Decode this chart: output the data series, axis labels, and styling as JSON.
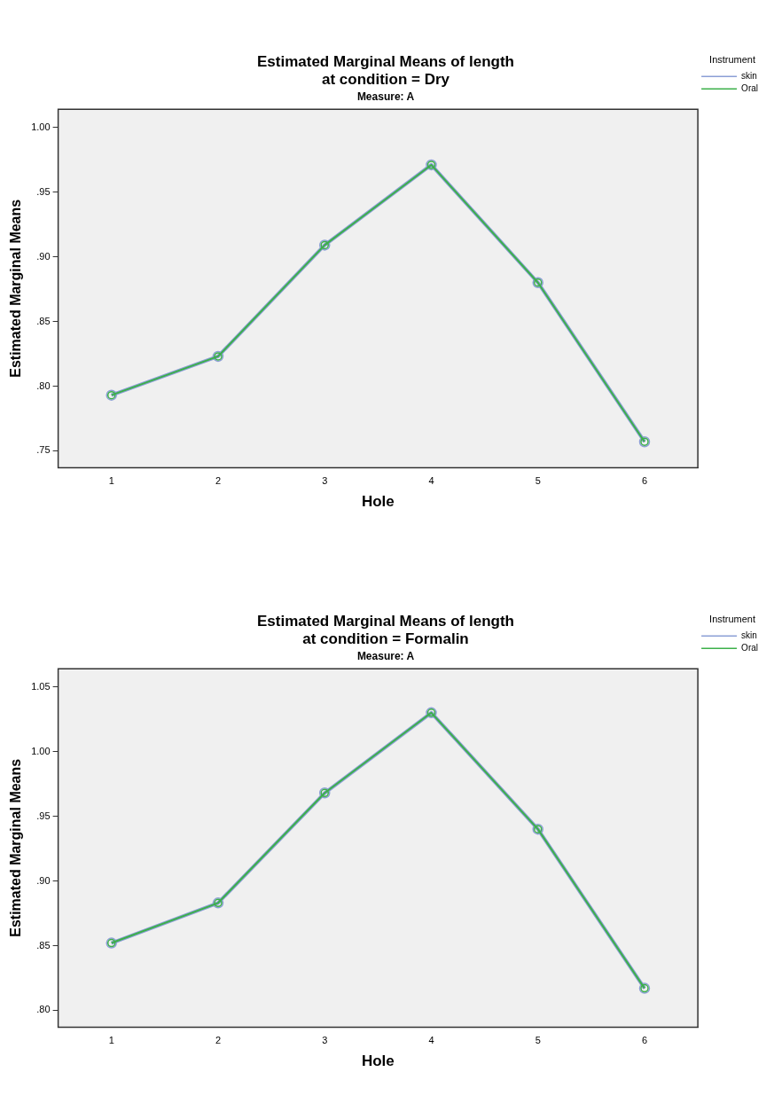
{
  "chart_data": [
    {
      "type": "line",
      "title": "Estimated Marginal Means of length\nat condition = Dry",
      "subtitle": "Measure: A",
      "xlabel": "Hole",
      "ylabel": "Estimated Marginal Means",
      "legend_title": "Instrument",
      "categories": [
        "1",
        "2",
        "3",
        "4",
        "5",
        "6"
      ],
      "series": [
        {
          "name": "skin",
          "color": "#8c9fd6",
          "values": [
            0.793,
            0.823,
            0.909,
            0.971,
            0.88,
            0.757
          ]
        },
        {
          "name": "Oral",
          "color": "#3cb04a",
          "values": [
            0.793,
            0.823,
            0.909,
            0.971,
            0.88,
            0.757
          ]
        }
      ],
      "ylim": [
        0.737,
        1.014
      ],
      "yticks": [
        {
          "value": 0.75,
          "label": ".75"
        },
        {
          "value": 0.8,
          "label": ".80"
        },
        {
          "value": 0.85,
          "label": ".85"
        },
        {
          "value": 0.9,
          "label": ".90"
        },
        {
          "value": 0.95,
          "label": ".95"
        },
        {
          "value": 1.0,
          "label": "1.00"
        }
      ],
      "grid": false,
      "legend": "top right",
      "marker": "circle",
      "line_style": "solid"
    },
    {
      "type": "line",
      "title": "Estimated Marginal Means of length\nat condition = Formalin",
      "subtitle": "Measure: A",
      "xlabel": "Hole",
      "ylabel": "Estimated Marginal Means",
      "legend_title": "Instrument",
      "categories": [
        "1",
        "2",
        "3",
        "4",
        "5",
        "6"
      ],
      "series": [
        {
          "name": "skin",
          "color": "#8c9fd6",
          "values": [
            0.852,
            0.883,
            0.968,
            1.03,
            0.94,
            0.817
          ]
        },
        {
          "name": "Oral",
          "color": "#3cb04a",
          "values": [
            0.852,
            0.883,
            0.968,
            1.03,
            0.94,
            0.817
          ]
        }
      ],
      "ylim": [
        0.787,
        1.064
      ],
      "yticks": [
        {
          "value": 0.8,
          "label": ".80"
        },
        {
          "value": 0.85,
          "label": ".85"
        },
        {
          "value": 0.9,
          "label": ".90"
        },
        {
          "value": 0.95,
          "label": ".95"
        },
        {
          "value": 1.0,
          "label": "1.00"
        },
        {
          "value": 1.05,
          "label": "1.05"
        }
      ],
      "grid": false,
      "legend": "top right",
      "marker": "circle",
      "line_style": "solid"
    }
  ]
}
